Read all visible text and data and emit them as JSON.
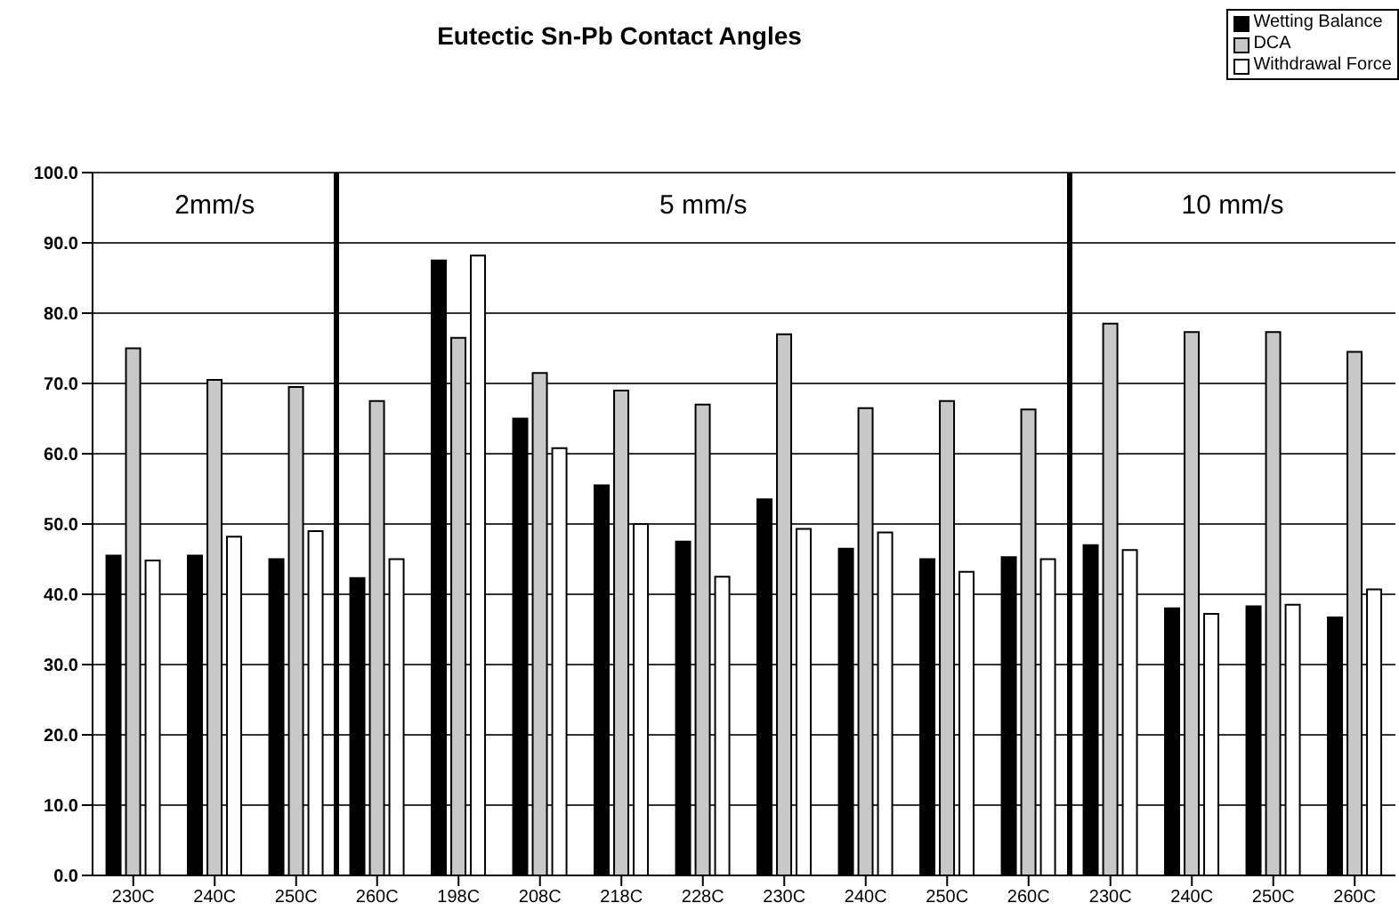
{
  "chart_data": [
    {
      "type": "bar",
      "categories": [
        "230C",
        "240C",
        "250C"
      ],
      "series": [
        {
          "color": "#000000",
          "values": [
            45.5,
            45.5,
            45
          ]
        },
        {
          "color": "#c8c8c8",
          "values": [
            75,
            70.5,
            69.5
          ]
        },
        {
          "color": "#ffffff",
          "values": [
            44.8,
            48.2,
            49
          ]
        }
      ],
      "ylim": [
        0,
        100
      ],
      "yticks": [
        {
          "value": 0,
          "label": "0.0"
        },
        {
          "value": 10,
          "label": "10.0"
        },
        {
          "value": 20,
          "label": "20.0"
        },
        {
          "value": 30,
          "label": "30.0"
        },
        {
          "value": 40,
          "label": "40.0"
        },
        {
          "value": 50,
          "label": "50.0"
        },
        {
          "value": 60,
          "label": "60.0"
        },
        {
          "value": 70,
          "label": "70.0"
        },
        {
          "value": 80,
          "label": "80.0"
        },
        {
          "value": 90,
          "label": "90.0"
        },
        {
          "value": 100,
          "label": "100.0"
        }
      ],
      "grid": "y",
      "annotations": [
        "2mm/s"
      ]
    },
    {
      "type": "bar",
      "title": "Eutectic Sn-Pb Contact Angles",
      "categories": [
        "260C",
        "198C",
        "208C",
        "218C",
        "228C",
        "230C",
        "240C",
        "250C",
        "260C"
      ],
      "series": [
        {
          "color": "#000000",
          "values": [
            42.3,
            87.5,
            65,
            55.5,
            47.5,
            53.5,
            46.5,
            45,
            45.3
          ]
        },
        {
          "color": "#c8c8c8",
          "values": [
            67.5,
            76.5,
            71.5,
            69,
            67,
            77,
            66.5,
            67.5,
            66.3
          ]
        },
        {
          "color": "#ffffff",
          "values": [
            45,
            88.2,
            60.8,
            50,
            42.5,
            49.3,
            48.8,
            43.2,
            45
          ]
        }
      ],
      "ylim": [
        0,
        100
      ],
      "yticks": [
        0,
        10,
        20,
        30,
        40,
        50,
        60,
        70,
        80,
        90,
        100
      ],
      "tick_labels": "x",
      "grid": "y",
      "annotations": [
        "5 mm/s"
      ]
    },
    {
      "type": "bar",
      "categories": [
        "230C",
        "240C",
        "250C",
        "260C"
      ],
      "series": [
        {
          "name": "Wetting Balance",
          "color": "#000000",
          "values": [
            47,
            38,
            38.3,
            36.7
          ]
        },
        {
          "name": "DCA",
          "color": "#c8c8c8",
          "values": [
            78.5,
            77.3,
            77.3,
            74.5
          ]
        },
        {
          "name": "Withdrawal Force",
          "color": "#ffffff",
          "values": [
            46.3,
            37.2,
            38.5,
            40.7
          ]
        }
      ],
      "ylim": [
        0,
        100
      ],
      "yticks": [
        0,
        10,
        20,
        30,
        40,
        50,
        60,
        70,
        80,
        90,
        100
      ],
      "tick_labels": "x",
      "grid": "y",
      "legend": "top right",
      "annotations": [
        "10 mm/s"
      ]
    }
  ]
}
